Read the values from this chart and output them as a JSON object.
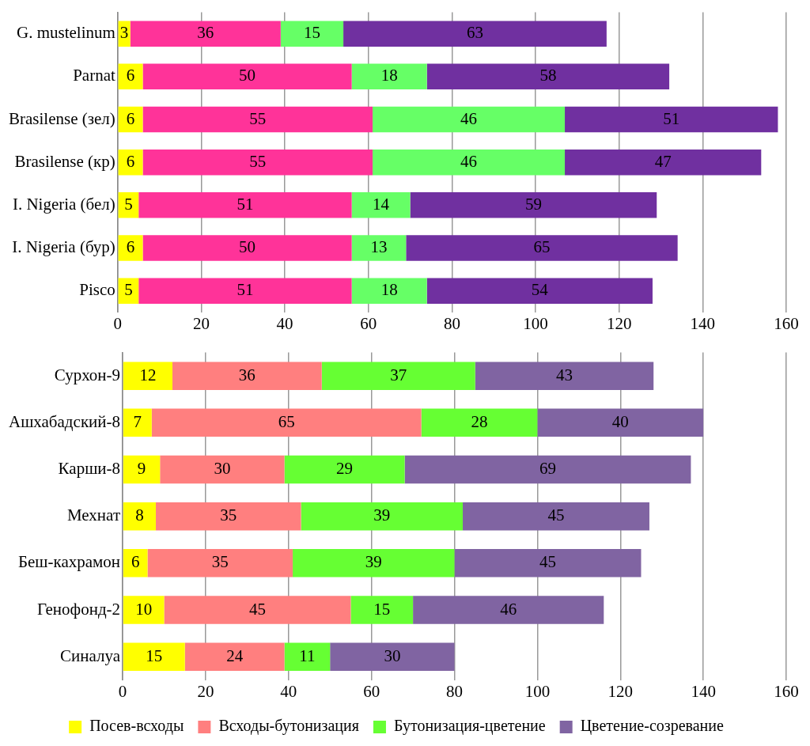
{
  "chart_data": [
    {
      "type": "bar",
      "orientation": "horizontal",
      "stacked": true,
      "data_labels": true,
      "grid": "x",
      "legend": false,
      "categories": [
        "G. mustelinum",
        "Parnat",
        "Brasilense (зел)",
        "Brasilense (кр)",
        "I. Nigeria (бел)",
        "I. Nigeria (бур)",
        "Pisco"
      ],
      "series": [
        {
          "color": "#ffff00",
          "values": [
            3,
            6,
            6,
            6,
            5,
            6,
            5
          ]
        },
        {
          "color": "#ff3399",
          "values": [
            36,
            50,
            55,
            55,
            51,
            50,
            51
          ]
        },
        {
          "color": "#66ff66",
          "values": [
            15,
            18,
            46,
            46,
            14,
            13,
            18
          ]
        },
        {
          "color": "#7030a0",
          "values": [
            63,
            58,
            51,
            47,
            59,
            65,
            54
          ]
        }
      ],
      "xlim": [
        0,
        160
      ],
      "xticks": [
        0,
        20,
        40,
        60,
        80,
        100,
        120,
        140,
        160
      ]
    },
    {
      "type": "bar",
      "orientation": "horizontal",
      "stacked": true,
      "data_labels": true,
      "grid": "x",
      "legend": "bottom",
      "categories": [
        "Сурхон-9",
        "Ашхабадский-8",
        "Карши-8",
        "Мехнат",
        "Беш-кахрамон",
        "Генофонд-2",
        "Синалуа"
      ],
      "series": [
        {
          "name": "Посев-всходы",
          "color": "#ffff00",
          "values": [
            12,
            7,
            9,
            8,
            6,
            10,
            15
          ]
        },
        {
          "name": "Всходы-бутонизация",
          "color": "#ff7f7f",
          "values": [
            36,
            65,
            30,
            35,
            35,
            45,
            24
          ]
        },
        {
          "name": "Бутонизация-цветение",
          "color": "#66ff33",
          "values": [
            37,
            28,
            29,
            39,
            39,
            15,
            11
          ]
        },
        {
          "name": "Цветение-созревание",
          "color": "#8064a2",
          "values": [
            43,
            40,
            69,
            45,
            45,
            46,
            30
          ]
        }
      ],
      "xlim": [
        0,
        160
      ],
      "xticks": [
        0,
        20,
        40,
        60,
        80,
        100,
        120,
        140,
        160
      ]
    }
  ]
}
